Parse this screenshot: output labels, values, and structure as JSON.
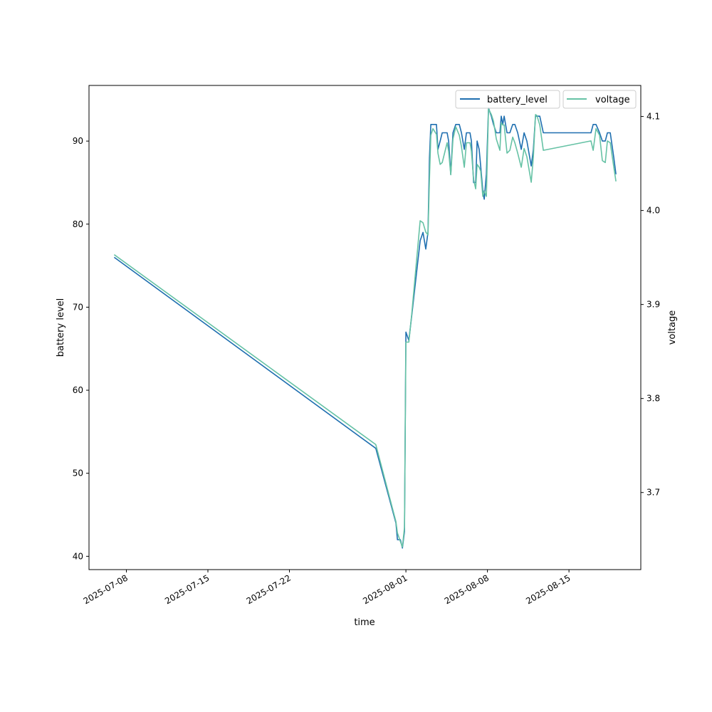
{
  "chart_data": {
    "type": "line",
    "xlabel": "time",
    "ylabel_left": "battery level",
    "ylabel_right": "voltage",
    "x_range": [
      "2025-07-04T19:00",
      "2025-08-21T04:00"
    ],
    "ylim_left": [
      38.4,
      96.7
    ],
    "ylim_right": [
      3.618,
      4.133
    ],
    "x_ticks": [
      "2025-07-08",
      "2025-07-15",
      "2025-07-22",
      "2025-08-01",
      "2025-08-08",
      "2025-08-15"
    ],
    "y_ticks_left": [
      40,
      50,
      60,
      70,
      80,
      90
    ],
    "y_ticks_right": [
      3.7,
      3.8,
      3.9,
      4.0,
      4.1
    ],
    "y_tick_labels_right": [
      "3.7",
      "3.8",
      "3.9",
      "4.0",
      "4.1"
    ],
    "grid": false,
    "legend_placement": "top-right",
    "x": [
      "2025-07-06T23:00",
      "2025-07-29T10:00",
      "2025-07-31T03:30",
      "2025-07-31T06:30",
      "2025-07-31T12:30",
      "2025-07-31T16:45",
      "2025-07-31T21:00",
      "2025-08-01T00:00",
      "2025-08-01T06:00",
      "2025-08-01T12:00",
      "2025-08-02T05:20",
      "2025-08-02T11:10",
      "2025-08-02T17:00",
      "2025-08-02T21:30",
      "2025-08-03T00:30",
      "2025-08-03T03:20",
      "2025-08-03T07:40",
      "2025-08-03T15:00",
      "2025-08-03T18:00",
      "2025-08-03T22:30",
      "2025-08-04T02:50",
      "2025-08-04T13:00",
      "2025-08-04T16:00",
      "2025-08-04T20:30",
      "2025-08-05T01:00",
      "2025-08-05T06:40",
      "2025-08-05T14:00",
      "2025-08-05T18:30",
      "2025-08-06T00:20",
      "2025-08-06T04:40",
      "2025-08-06T12:00",
      "2025-08-06T15:00",
      "2025-08-06T19:30",
      "2025-08-06T23:50",
      "2025-08-07T02:40",
      "2025-08-07T07:00",
      "2025-08-07T10:00",
      "2025-08-07T14:30",
      "2025-08-07T17:20",
      "2025-08-07T21:50",
      "2025-08-08T02:10",
      "2025-08-08T08:00",
      "2025-08-08T12:30",
      "2025-08-08T18:20",
      "2025-08-09T01:40",
      "2025-08-09T04:30",
      "2025-08-09T07:30",
      "2025-08-09T10:30",
      "2025-08-09T16:20",
      "2025-08-09T22:10",
      "2025-08-10T04:00",
      "2025-08-10T08:30",
      "2025-08-10T14:20",
      "2025-08-10T21:40",
      "2025-08-11T03:30",
      "2025-08-11T09:20",
      "2025-08-11T18:10",
      "2025-08-11T22:40",
      "2025-08-12T03:00",
      "2025-08-12T06:00",
      "2025-08-12T11:50",
      "2025-08-12T19:10",
      "2025-08-16T21:20",
      "2025-08-17T01:50",
      "2025-08-17T07:40",
      "2025-08-17T15:00",
      "2025-08-17T20:50",
      "2025-08-18T02:50",
      "2025-08-18T07:10",
      "2025-08-18T13:00",
      "2025-08-18T20:20",
      "2025-08-19T00:50"
    ],
    "series": [
      {
        "name": "battery_level",
        "axis": "left",
        "color": "#1f6fb0",
        "values": [
          76,
          53,
          44,
          42,
          42,
          41,
          43,
          67,
          66,
          69,
          78,
          79,
          77,
          79,
          88,
          92,
          92,
          92,
          89,
          90,
          91,
          91,
          90,
          86,
          91,
          92,
          92,
          91,
          89,
          91,
          91,
          90,
          85,
          85,
          90,
          89,
          87,
          84,
          83,
          86,
          94,
          93,
          92,
          91,
          91,
          93,
          92,
          93,
          91,
          91,
          92,
          92,
          91,
          89,
          91,
          90,
          87,
          89,
          93,
          93,
          93,
          91,
          91,
          92,
          92,
          91,
          90,
          90,
          91,
          91,
          88,
          86
        ]
      },
      {
        "name": "voltage",
        "axis": "right",
        "color": "#66c2a5",
        "values": [
          3.953,
          3.751,
          3.669,
          3.657,
          3.648,
          3.642,
          3.663,
          3.86,
          3.86,
          3.89,
          3.989,
          3.987,
          3.977,
          3.974,
          4.034,
          4.08,
          4.087,
          4.081,
          4.061,
          4.049,
          4.051,
          4.072,
          4.063,
          4.038,
          4.076,
          4.089,
          4.08,
          4.068,
          4.046,
          4.072,
          4.072,
          4.063,
          4.033,
          4.023,
          4.049,
          4.046,
          4.042,
          4.015,
          4.021,
          4.015,
          4.108,
          4.102,
          4.095,
          4.076,
          4.064,
          4.093,
          4.091,
          4.091,
          4.061,
          4.064,
          4.078,
          4.072,
          4.061,
          4.046,
          4.066,
          4.057,
          4.03,
          4.057,
          4.102,
          4.101,
          4.091,
          4.064,
          4.074,
          4.064,
          4.087,
          4.08,
          4.053,
          4.051,
          4.074,
          4.072,
          4.046,
          4.031
        ]
      }
    ]
  }
}
